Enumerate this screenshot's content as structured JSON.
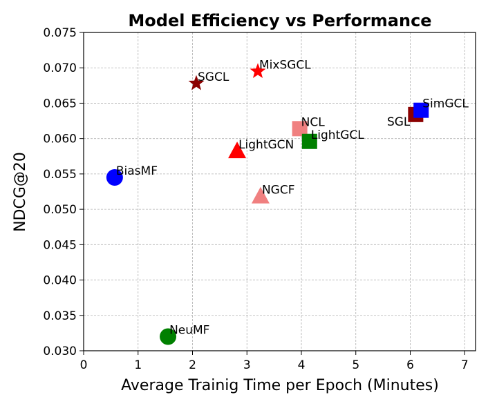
{
  "chart_data": {
    "type": "scatter",
    "title": "Model Efficiency vs Performance",
    "xlabel": "Average Trainig Time per Epoch (Minutes)",
    "ylabel": "NDCG@20",
    "xlim": [
      0,
      7.2
    ],
    "ylim": [
      0.03,
      0.075
    ],
    "xticks": [
      0,
      1,
      2,
      3,
      4,
      5,
      6,
      7
    ],
    "yticks": [
      0.03,
      0.035,
      0.04,
      0.045,
      0.05,
      0.055,
      0.06,
      0.065,
      0.07,
      0.075
    ],
    "ytick_labels": [
      "0.030",
      "0.035",
      "0.040",
      "0.045",
      "0.050",
      "0.055",
      "0.060",
      "0.065",
      "0.070",
      "0.075"
    ],
    "grid": true,
    "points": [
      {
        "name": "BiasMF",
        "x": 0.57,
        "y": 0.0545,
        "marker": "circle",
        "color": "#0000ff",
        "label_pos": "upper-right"
      },
      {
        "name": "NeuMF",
        "x": 1.55,
        "y": 0.032,
        "marker": "circle",
        "color": "#008000",
        "label_pos": "upper-right"
      },
      {
        "name": "SGCL",
        "x": 2.07,
        "y": 0.0678,
        "marker": "star",
        "color": "#8b0000",
        "label_pos": "upper-right"
      },
      {
        "name": "MixSGCL",
        "x": 3.2,
        "y": 0.0695,
        "marker": "star",
        "color": "#ff0000",
        "label_pos": "upper-right"
      },
      {
        "name": "LightGCN",
        "x": 2.82,
        "y": 0.0582,
        "marker": "triangle",
        "color": "#ff0000",
        "label_pos": "upper-right"
      },
      {
        "name": "NGCF",
        "x": 3.25,
        "y": 0.0518,
        "marker": "triangle",
        "color": "#f08080",
        "label_pos": "upper-right"
      },
      {
        "name": "NCL",
        "x": 3.97,
        "y": 0.0614,
        "marker": "square",
        "color": "#f08080",
        "label_pos": "upper-right"
      },
      {
        "name": "LightGCL",
        "x": 4.15,
        "y": 0.0596,
        "marker": "square",
        "color": "#008000",
        "label_pos": "upper-right"
      },
      {
        "name": "SGL",
        "x": 6.1,
        "y": 0.0634,
        "marker": "square",
        "color": "#8b0000",
        "label_pos": "lower-left"
      },
      {
        "name": "SimGCL",
        "x": 6.2,
        "y": 0.064,
        "marker": "square",
        "color": "#0000ff",
        "label_pos": "upper-right"
      }
    ]
  }
}
